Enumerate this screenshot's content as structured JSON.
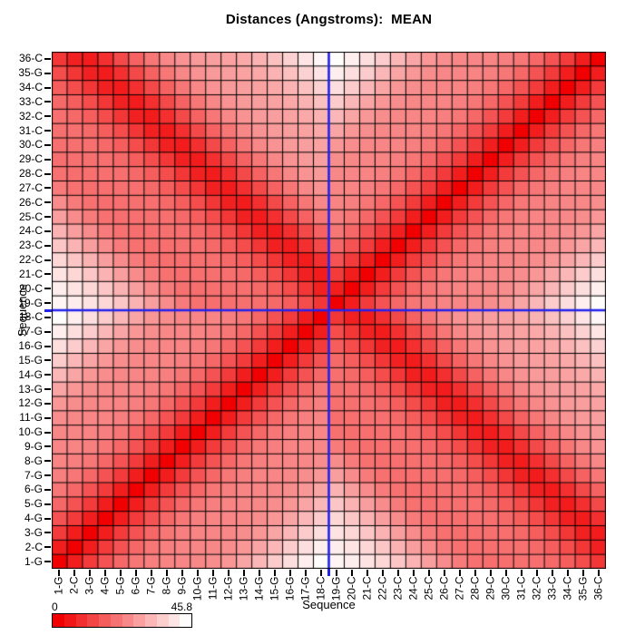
{
  "title": "Distances (Angstroms):  MEAN",
  "x_axis": {
    "label": "Sequence"
  },
  "y_axis": {
    "label": "Sequence"
  },
  "colorbar": {
    "min_label": "0",
    "max_label": "45.8",
    "levels": 12,
    "min_color": "#F00000",
    "max_color": "#FFFCFC"
  },
  "crosshair": {
    "color": "#2222EE",
    "between_positions": [
      "18-C",
      "19-G"
    ],
    "x_boundary_index": 18,
    "y_boundary_index": 18
  },
  "grid_color": "#000000",
  "chart_data": {
    "type": "heatmap",
    "title": "Distances (Angstroms):  MEAN",
    "xlabel": "Sequence",
    "ylabel": "Sequence",
    "units": "Angstroms",
    "statistic": "MEAN",
    "categories": [
      "1-G",
      "2-C",
      "3-G",
      "4-G",
      "5-G",
      "6-G",
      "7-G",
      "8-G",
      "9-G",
      "10-G",
      "11-G",
      "12-G",
      "13-G",
      "14-G",
      "15-G",
      "16-G",
      "17-G",
      "18-C",
      "19-G",
      "20-C",
      "21-C",
      "22-C",
      "23-C",
      "24-C",
      "25-C",
      "26-C",
      "27-C",
      "28-C",
      "29-C",
      "30-C",
      "31-C",
      "32-C",
      "33-C",
      "34-C",
      "35-G",
      "36-C"
    ],
    "y_order": "bottom_to_top",
    "value_range": [
      0,
      45.8
    ],
    "symmetric": true,
    "strand1_positions": [
      1,
      18
    ],
    "strand2_positions": [
      19,
      36
    ],
    "matrix_rule": "if residues a,b on same strand: value = same_strand_distance_by_separation[|a-b|]; if on opposite strands: value = cross_strand_distance_by_offset.values[(a+b-37)+17]; matrix is symmetric, diagonal = 0",
    "same_strand_distance_by_separation": [
      0,
      5.49,
      10.64,
      15.16,
      18.81,
      21.45,
      23.12,
      23.95,
      24.3,
      24.67,
      25.57,
      27.35,
      30.03,
      33.35,
      36.9,
      40.31,
      43.32,
      45.8
    ],
    "cross_strand_distance_by_offset": {
      "offset_definition": "m = a + b - 37, m from -17 to 17",
      "offset_range": [
        -17,
        17
      ],
      "values": [
        44.6,
        43.1,
        41.25,
        38.87,
        35.9,
        32.43,
        28.72,
        25.21,
        22.36,
        20.61,
        20.02,
        20.18,
        20.43,
        20.2,
        19.1,
        16.97,
        13.84,
        9.93,
        6.03,
        5.01,
        8.61,
        13.32,
        17.82,
        21.64,
        24.58,
        26.62,
        27.9,
        28.69,
        29.43,
        30.54,
        32.34,
        34.9,
        38.05,
        41.47,
        44.83
      ]
    },
    "legend_position": "bottom-left",
    "grid": true
  }
}
